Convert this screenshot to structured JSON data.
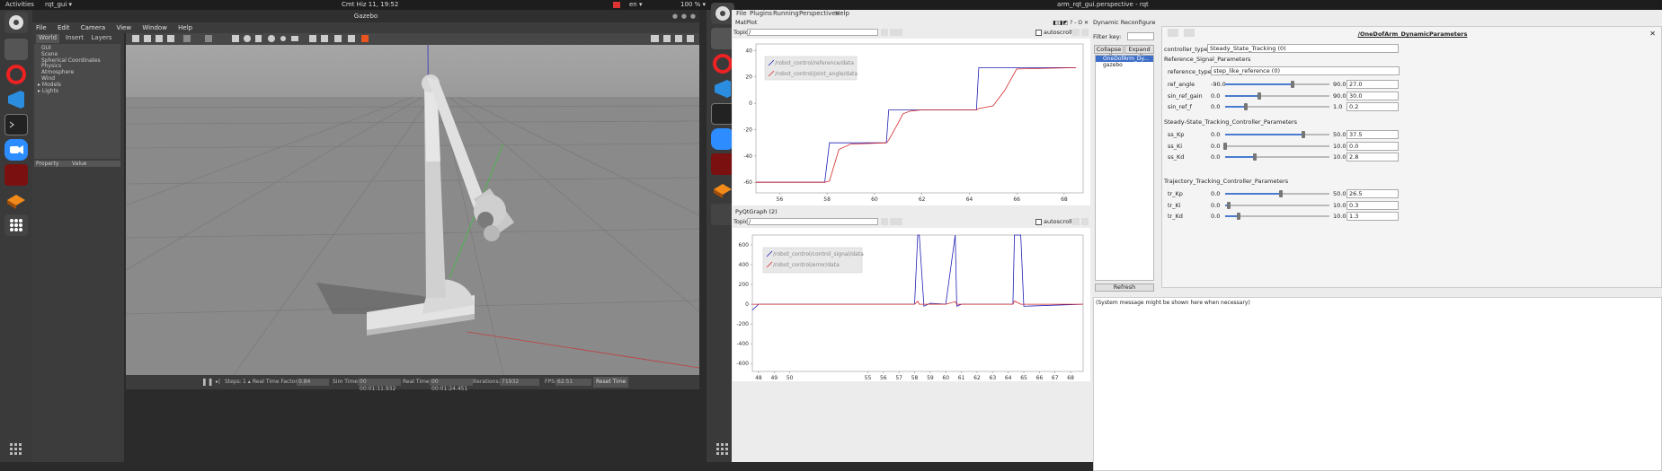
{
  "topbar_left": {
    "activities": "Activities",
    "app": "rqt_gui ▾"
  },
  "topbar_center": "Cmt Hiz 11, 19:52",
  "topbar_right": {
    "lang": "en ▾",
    "zoom": "100 % ▾"
  },
  "gazebo": {
    "title": "Gazebo",
    "menu": [
      "File",
      "Edit",
      "Camera",
      "View",
      "Window",
      "Help"
    ],
    "tabs": [
      "World",
      "Insert",
      "Layers"
    ],
    "tree": [
      "GUI",
      "Scene",
      "Spherical Coordinates",
      "Physics",
      "Atmosphere",
      "Wind",
      "Models",
      "Lights"
    ],
    "prop_headers": [
      "Property",
      "Value"
    ],
    "status": {
      "steps_label": "Steps:",
      "steps_value": "1 ▴",
      "rtf_label": "Real Time Factor:",
      "rtf_value": "0.84",
      "sim_label": "Sim Time:",
      "sim_value": "00 00:01:11.932",
      "real_label": "Real Time:",
      "real_value": "00 00:01:24.451",
      "iter_label": "Iterations:",
      "iter_value": "71932",
      "fps_label": "FPS:",
      "fps_value": "62.51",
      "reset": "Reset Time"
    }
  },
  "rqt": {
    "title": "arm_rqt_gui.perspective - rqt",
    "menu": [
      "File",
      "Plugins",
      "Running",
      "Perspectives",
      "Help"
    ],
    "matplot": {
      "title": "MatPlot",
      "topic_label": "Topic",
      "topic_value": "/",
      "autoscroll": "autoscroll",
      "legend": [
        "/robot_control/reference/data",
        "/robot_control/joint_angle/data"
      ],
      "x_ticks": [
        "56",
        "58",
        "60",
        "62",
        "64",
        "66",
        "68"
      ],
      "y_ticks": [
        "40",
        "20",
        "0",
        "-20",
        "-40",
        "-60"
      ]
    },
    "pyqtgraph": {
      "title": "PyQtGraph (2)",
      "topic_label": "Topic",
      "topic_value": "/",
      "autoscroll": "autoscroll",
      "legend": [
        "/robot_control/control_signal/data",
        "/robot_control/error/data"
      ],
      "x_ticks": [
        "48",
        "49",
        "50",
        "55",
        "56",
        "57",
        "58",
        "59",
        "60",
        "61",
        "62",
        "63",
        "64",
        "65",
        "66",
        "67",
        "68"
      ],
      "y_ticks": [
        "600",
        "400",
        "200",
        "0",
        "-200",
        "-400",
        "-600"
      ]
    },
    "dynreconf": {
      "title": "Dynamic Reconfigure",
      "filter_label": "Filter key:",
      "collapse": "Collapse all",
      "expand": "Expand all",
      "tree": [
        "OneDofArm_Dy...",
        "gazebo"
      ],
      "refresh": "Refresh",
      "message": "(System message might be shown here when necessary)",
      "node_title": "/OneDofArm_DynamicParameters",
      "controller_type_label": "controller_type",
      "controller_type_value": "Steady_State_Tracking (0)",
      "sections": [
        {
          "title": "Reference_Signal_Parameters",
          "reference_type_label": "reference_type",
          "reference_type_value": "step_like_reference (0)",
          "rows": [
            {
              "name": "ref_angle",
              "min": "-90.0",
              "max": "90.0",
              "value": "27.0",
              "frac": 0.65
            },
            {
              "name": "sin_ref_gain",
              "min": "0.0",
              "max": "90.0",
              "value": "30.0",
              "frac": 0.33
            },
            {
              "name": "sin_ref_f",
              "min": "0.0",
              "max": "1.0",
              "value": "0.2",
              "frac": 0.2
            }
          ]
        },
        {
          "title": "Steady-State_Tracking_Controller_Parameters",
          "rows": [
            {
              "name": "ss_Kp",
              "min": "0.0",
              "max": "50.0",
              "value": "37.5",
              "frac": 0.75
            },
            {
              "name": "ss_Ki",
              "min": "0.0",
              "max": "10.0",
              "value": "0.0",
              "frac": 0.0
            },
            {
              "name": "ss_Kd",
              "min": "0.0",
              "max": "10.0",
              "value": "2.8",
              "frac": 0.28
            }
          ]
        },
        {
          "title": "Trajectory_Tracking_Controller_Parameters",
          "rows": [
            {
              "name": "tr_Kp",
              "min": "0.0",
              "max": "50.0",
              "value": "26.5",
              "frac": 0.53
            },
            {
              "name": "tr_Ki",
              "min": "0.0",
              "max": "10.0",
              "value": "0.3",
              "frac": 0.03
            },
            {
              "name": "tr_Kd",
              "min": "0.0",
              "max": "10.0",
              "value": "1.3",
              "frac": 0.13
            }
          ]
        }
      ]
    }
  },
  "colors": {
    "accent": "#e95420",
    "blue": "#1f1fb4",
    "red": "#d62728"
  },
  "chart_data": [
    {
      "type": "line",
      "x": [
        55,
        57.9,
        58.1,
        58.5,
        59.0,
        60.5,
        60.6,
        61.0,
        61.2,
        61.5,
        62.0,
        63.0,
        64.3,
        64.4,
        65.0,
        65.5,
        66.0,
        68.5
      ],
      "series": [
        {
          "name": "/robot_control/reference/data",
          "values": [
            -60,
            -60,
            -30,
            -30,
            -30,
            -30,
            -5,
            -5,
            -5,
            -5,
            -5,
            -5,
            -5,
            27,
            27,
            27,
            27,
            27
          ]
        },
        {
          "name": "/robot_control/joint_angle/data",
          "values": [
            -60,
            -60,
            -59,
            -35,
            -31,
            -30,
            -28,
            -15,
            -8,
            -6,
            -5,
            -5,
            -5,
            -4,
            -2,
            10,
            26,
            27
          ]
        }
      ],
      "xlim": [
        55,
        68.8
      ],
      "ylim": [
        -68,
        45
      ]
    },
    {
      "type": "line",
      "x": [
        47.6,
        48,
        58,
        58.2,
        58.3,
        58.6,
        59,
        60,
        60.6,
        60.7,
        61,
        61.5,
        64.3,
        64.4,
        64.8,
        65,
        68.8
      ],
      "series": [
        {
          "name": "/robot_control/control_signal/data",
          "values": [
            -60,
            0,
            0,
            700,
            700,
            -20,
            10,
            0,
            700,
            -20,
            0,
            0,
            0,
            700,
            700,
            -20,
            0
          ]
        },
        {
          "name": "/robot_control/error/data",
          "values": [
            0,
            0,
            0,
            30,
            0,
            0,
            0,
            0,
            25,
            0,
            0,
            0,
            0,
            32,
            0,
            0,
            0
          ]
        }
      ],
      "xlim": [
        47.6,
        68.8
      ],
      "ylim": [
        -680,
        700
      ]
    }
  ]
}
